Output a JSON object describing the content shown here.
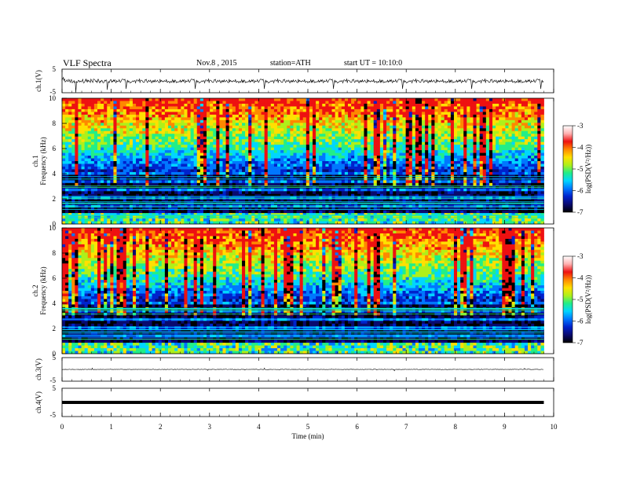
{
  "header": {
    "title": "VLF Spectra",
    "date": "Nov.8 , 2015",
    "station": "station=ATH",
    "start": "start UT = 10:10:0"
  },
  "colors": {
    "background": "#ffffff",
    "trace": "#000000",
    "colormap": [
      "#000000",
      "#0a0a6e",
      "#0022cc",
      "#0077ff",
      "#00d6ff",
      "#22ee88",
      "#aef01a",
      "#ffe000",
      "#ff8800",
      "#ee1111",
      "#ffb0b0",
      "#ffffff"
    ]
  },
  "chart_data": [
    {
      "type": "line",
      "name": "ch1-waveform",
      "ylabel": "ch.1(V)",
      "ylim": [
        -5,
        5
      ],
      "yticks": [
        "5",
        "-5"
      ],
      "xlim": [
        0,
        10
      ],
      "baseline": 0,
      "trace_end_min": 9.8
    },
    {
      "type": "heatmap",
      "name": "ch1-spectrogram",
      "ylabel_top": "ch.1",
      "ylabel": "Frequency (kHz)",
      "ylim": [
        0,
        10
      ],
      "yticks": [
        "0",
        "2",
        "4",
        "6",
        "8",
        "10"
      ],
      "xlim": [
        0,
        10
      ],
      "data_end_min": 9.8,
      "colorbar": {
        "label": "log(PSD(V²/Hz))",
        "range": [
          -7,
          -3
        ],
        "ticks": [
          "-3",
          "-4",
          "-5",
          "-6",
          "-7"
        ]
      }
    },
    {
      "type": "heatmap",
      "name": "ch2-spectrogram",
      "ylabel_top": "ch.2",
      "ylabel": "Frequency (kHz)",
      "ylim": [
        0,
        10
      ],
      "yticks": [
        "0",
        "2",
        "4",
        "6",
        "8",
        "10"
      ],
      "xlim": [
        0,
        10
      ],
      "data_end_min": 9.8,
      "colorbar": {
        "label": "log(PSD(V²/Hz))",
        "range": [
          -7,
          -3
        ],
        "ticks": [
          "-3",
          "-4",
          "-5",
          "-6",
          "-7"
        ]
      }
    },
    {
      "type": "line",
      "name": "ch3-waveform",
      "ylabel": "ch.3(V)",
      "ylim": [
        -5,
        5
      ],
      "yticks": [
        "5",
        "-5"
      ],
      "xlim": [
        0,
        10
      ],
      "baseline": 0,
      "trace_end_min": 9.8
    },
    {
      "type": "line",
      "name": "ch4-waveform",
      "ylabel": "ch.4(V)",
      "ylim": [
        -5,
        5
      ],
      "yticks": [
        "5",
        "-5"
      ],
      "xlim": [
        0,
        10
      ],
      "baseline": 0,
      "trace_end_min": 9.8,
      "xlabel": "Time (min)",
      "xticks": [
        "0",
        "1",
        "2",
        "3",
        "4",
        "5",
        "6",
        "7",
        "8",
        "9",
        "10"
      ]
    }
  ]
}
